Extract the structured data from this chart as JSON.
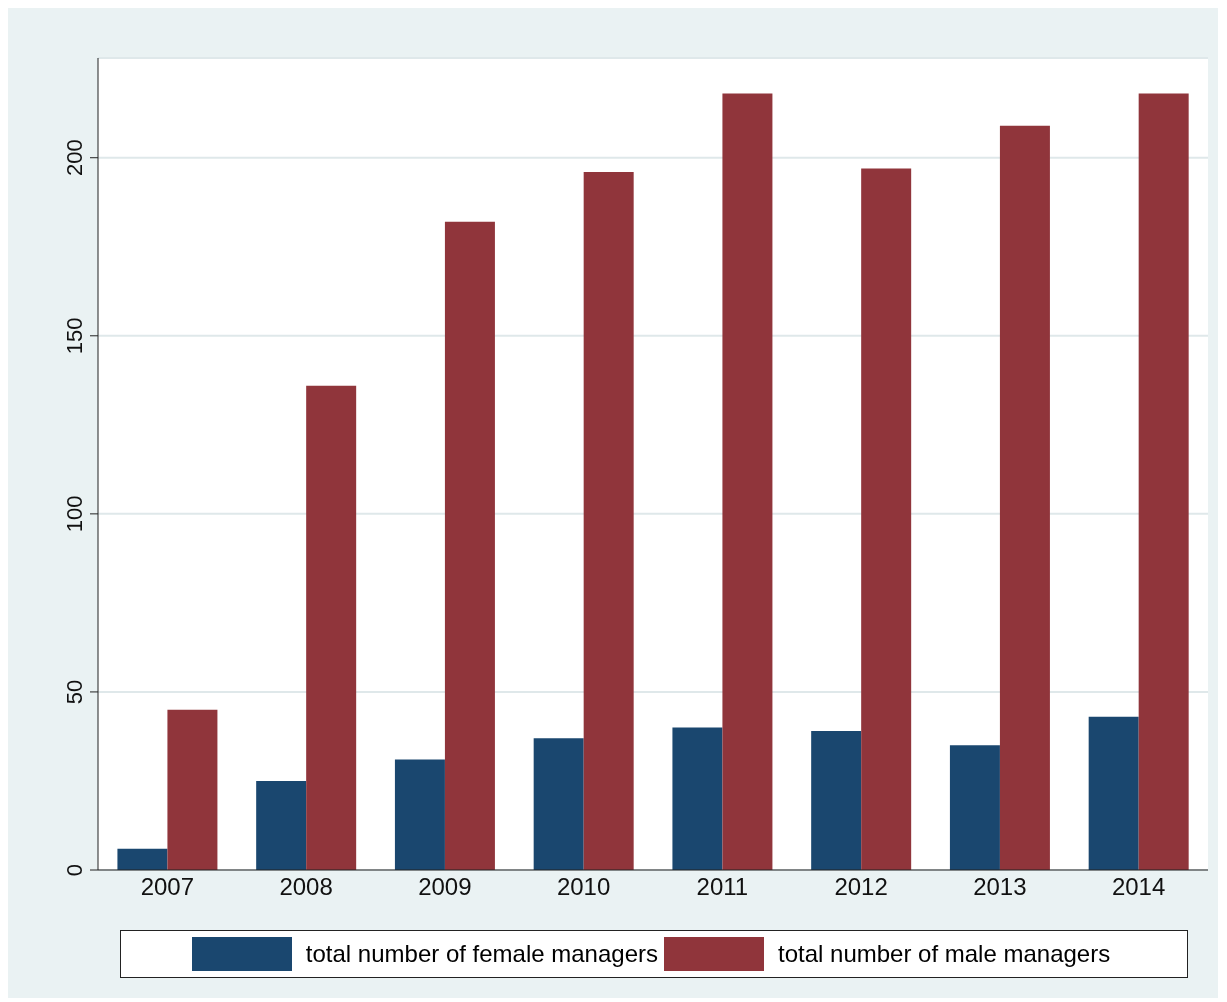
{
  "chart_data": {
    "type": "bar",
    "categories": [
      "2007",
      "2008",
      "2009",
      "2010",
      "2011",
      "2012",
      "2013",
      "2014"
    ],
    "series": [
      {
        "name": "total number of female managers",
        "color": "#1a476f",
        "values": [
          6,
          25,
          31,
          37,
          40,
          39,
          35,
          43
        ]
      },
      {
        "name": "total number of male managers",
        "color": "#90353b",
        "values": [
          45,
          136,
          182,
          196,
          218,
          197,
          209,
          218
        ]
      }
    ],
    "ylim": [
      0,
      228
    ],
    "yticks": [
      0,
      50,
      100,
      150,
      200
    ],
    "grid": "y",
    "legend": "bottom"
  }
}
